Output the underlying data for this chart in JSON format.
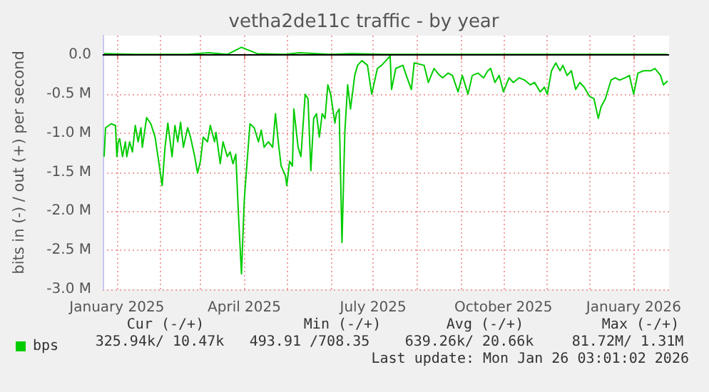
{
  "chart_data": {
    "type": "line",
    "title": "vetha2de11c traffic - by year",
    "ylabel": "bits in (-) / out (+) per second",
    "xlim": [
      "2024-12-22",
      "2026-01-26"
    ],
    "xticks": [
      {
        "value": "2025-01-01",
        "label": "January 2025"
      },
      {
        "value": "2025-02-01",
        "label": null
      },
      {
        "value": "2025-03-01",
        "label": null
      },
      {
        "value": "2025-04-01",
        "label": "April 2025"
      },
      {
        "value": "2025-05-01",
        "label": null
      },
      {
        "value": "2025-06-01",
        "label": null
      },
      {
        "value": "2025-07-01",
        "label": "July 2025"
      },
      {
        "value": "2025-08-01",
        "label": null
      },
      {
        "value": "2025-09-01",
        "label": null
      },
      {
        "value": "2025-10-01",
        "label": "October 2025"
      },
      {
        "value": "2025-11-01",
        "label": null
      },
      {
        "value": "2025-12-01",
        "label": null
      },
      {
        "value": "2026-01-01",
        "label": "January 2026"
      }
    ],
    "ylim": [
      -3.0,
      0.25
    ],
    "yticks": [
      {
        "value": 0,
        "label": "0.0"
      },
      {
        "value": -0.5,
        "label": "-0.5 M"
      },
      {
        "value": -1.0,
        "label": "-1.0 M"
      },
      {
        "value": -1.5,
        "label": "-1.5 M"
      },
      {
        "value": -2.0,
        "label": "-2.0 M"
      },
      {
        "value": -2.5,
        "label": "-2.5 M"
      },
      {
        "value": -3.0,
        "label": "-3.0 M"
      }
    ],
    "grid": true,
    "legend": "bottom left",
    "ref_lines": [
      {
        "axis": "y",
        "value": 0,
        "color": "#000000"
      }
    ],
    "series": [
      {
        "name": "bps",
        "color": "#00cc00",
        "x": [
          "2024-12-23",
          "2024-12-24",
          "2024-12-28",
          "2024-12-31",
          "2025-01-01",
          "2025-01-02",
          "2025-01-03",
          "2025-01-05",
          "2025-01-07",
          "2025-01-08",
          "2025-01-10",
          "2025-01-12",
          "2025-01-14",
          "2025-01-16",
          "2025-01-18",
          "2025-01-19",
          "2025-01-22",
          "2025-01-25",
          "2025-01-28",
          "2025-01-31",
          "2025-02-02",
          "2025-02-04",
          "2025-02-06",
          "2025-02-09",
          "2025-02-11",
          "2025-02-13",
          "2025-02-15",
          "2025-02-17",
          "2025-02-20",
          "2025-02-22",
          "2025-02-25",
          "2025-02-27",
          "2025-03-01",
          "2025-03-03",
          "2025-03-06",
          "2025-03-08",
          "2025-03-11",
          "2025-03-12",
          "2025-03-15",
          "2025-03-17",
          "2025-03-20",
          "2025-03-22",
          "2025-03-24",
          "2025-03-26",
          "2025-03-28",
          "2025-03-30",
          "2025-04-01",
          "2025-04-03",
          "2025-04-05",
          "2025-04-08",
          "2025-04-11",
          "2025-04-13",
          "2025-04-15",
          "2025-04-18",
          "2025-04-21",
          "2025-04-23",
          "2025-04-25",
          "2025-04-27",
          "2025-04-30",
          "2025-05-01",
          "2025-05-03",
          "2025-05-05",
          "2025-05-06",
          "2025-05-09",
          "2025-05-11",
          "2025-05-14",
          "2025-05-16",
          "2025-05-18",
          "2025-05-20",
          "2025-05-22",
          "2025-05-24",
          "2025-05-26",
          "2025-05-28",
          "2025-05-30",
          "2025-06-01",
          "2025-06-04",
          "2025-06-05",
          "2025-06-07",
          "2025-06-09",
          "2025-06-11",
          "2025-06-13",
          "2025-06-15",
          "2025-06-18",
          "2025-06-20",
          "2025-06-23",
          "2025-06-27",
          "2025-06-30",
          "2025-07-04",
          "2025-07-07",
          "2025-07-10",
          "2025-07-13",
          "2025-07-14",
          "2025-07-17",
          "2025-07-22",
          "2025-07-25",
          "2025-07-28",
          "2025-07-30",
          "2025-08-06",
          "2025-08-09",
          "2025-08-13",
          "2025-08-16",
          "2025-08-19",
          "2025-08-23",
          "2025-08-26",
          "2025-08-30",
          "2025-09-02",
          "2025-09-06",
          "2025-09-09",
          "2025-09-13",
          "2025-09-17",
          "2025-09-20",
          "2025-09-22",
          "2025-09-25",
          "2025-09-28",
          "2025-10-01",
          "2025-10-05",
          "2025-10-08",
          "2025-10-12",
          "2025-10-16",
          "2025-10-20",
          "2025-10-23",
          "2025-10-27",
          "2025-10-30",
          "2025-11-01",
          "2025-11-04",
          "2025-11-07",
          "2025-11-10",
          "2025-11-12",
          "2025-11-15",
          "2025-11-18",
          "2025-11-21",
          "2025-11-24",
          "2025-11-27",
          "2025-12-01",
          "2025-12-04",
          "2025-12-07",
          "2025-12-09",
          "2025-12-12",
          "2025-12-16",
          "2025-12-19",
          "2025-12-22",
          "2025-12-26",
          "2025-12-29",
          "2026-01-01",
          "2026-01-04",
          "2026-01-08",
          "2026-01-13",
          "2026-01-16",
          "2026-01-20",
          "2026-01-22",
          "2026-01-25"
        ],
        "values": [
          -1.3,
          -0.93,
          -0.88,
          -0.9,
          -1.3,
          -1.11,
          -1.07,
          -1.3,
          -1.11,
          -1.3,
          -1.11,
          -1.24,
          -0.9,
          -1.11,
          -0.93,
          -1.18,
          -0.8,
          -0.88,
          -1.05,
          -1.42,
          -1.67,
          -1.18,
          -0.87,
          -1.3,
          -0.9,
          -1.11,
          -0.86,
          -1.18,
          -0.93,
          -1.05,
          -1.3,
          -1.51,
          -1.36,
          -1.05,
          -1.11,
          -0.9,
          -1.11,
          -0.99,
          -1.39,
          -1.11,
          -1.3,
          -1.24,
          -1.39,
          -1.27,
          -2.09,
          -2.8,
          -1.85,
          -1.36,
          -0.88,
          -0.93,
          -1.11,
          -0.96,
          -1.18,
          -1.11,
          -1.18,
          -0.75,
          -1.11,
          -1.42,
          -1.54,
          -1.67,
          -1.36,
          -1.42,
          -0.69,
          -1.18,
          -1.3,
          -0.5,
          -0.56,
          -1.48,
          -0.81,
          -0.75,
          -1.05,
          -0.75,
          -0.81,
          -0.38,
          -0.5,
          -0.87,
          -0.75,
          -0.69,
          -2.4,
          -0.99,
          -0.38,
          -0.69,
          -0.26,
          -0.13,
          -0.07,
          -0.13,
          -0.5,
          -0.17,
          -0.13,
          -0.07,
          -0.01,
          -0.44,
          -0.17,
          -0.13,
          -0.29,
          -0.44,
          -0.1,
          -0.13,
          -0.35,
          -0.17,
          -0.24,
          -0.29,
          -0.23,
          -0.26,
          -0.47,
          -0.26,
          -0.5,
          -0.26,
          -0.23,
          -0.29,
          -0.2,
          -0.17,
          -0.35,
          -0.26,
          -0.47,
          -0.29,
          -0.35,
          -0.29,
          -0.32,
          -0.38,
          -0.35,
          -0.47,
          -0.41,
          -0.5,
          -0.2,
          -0.1,
          -0.2,
          -0.13,
          -0.26,
          -0.2,
          -0.44,
          -0.35,
          -0.41,
          -0.53,
          -0.56,
          -0.81,
          -0.66,
          -0.56,
          -0.32,
          -0.29,
          -0.32,
          -0.29,
          -0.26,
          -0.5,
          -0.23,
          -0.2,
          -0.2,
          -0.17,
          -0.26,
          -0.38,
          -0.33
        ]
      },
      {
        "color": "#00cc00",
        "x": [
          "2024-12-23",
          "2025-01-15",
          "2025-02-20",
          "2025-03-07",
          "2025-03-20",
          "2025-03-30",
          "2025-04-10",
          "2025-04-30",
          "2025-05-10",
          "2025-06-01",
          "2025-06-15",
          "2025-07-10",
          "2025-09-01",
          "2025-11-01",
          "2026-01-25"
        ],
        "values": [
          0.02,
          0.01,
          0.01,
          0.03,
          0.01,
          0.1,
          0.02,
          0.01,
          0.03,
          0.01,
          0.02,
          0.01,
          0.01,
          0.01,
          0.01
        ]
      }
    ],
    "annotations": [
      "Cur (-/+)",
      "Min (-/+)",
      "Avg (-/+)",
      "Max (-/+)",
      "325.94k/ 10.47k",
      "493.91 /708.35",
      "639.26k/ 20.66k",
      "81.72M/ 1.31M",
      "Last update: Mon Jan 26 03:01:02 2026"
    ]
  }
}
